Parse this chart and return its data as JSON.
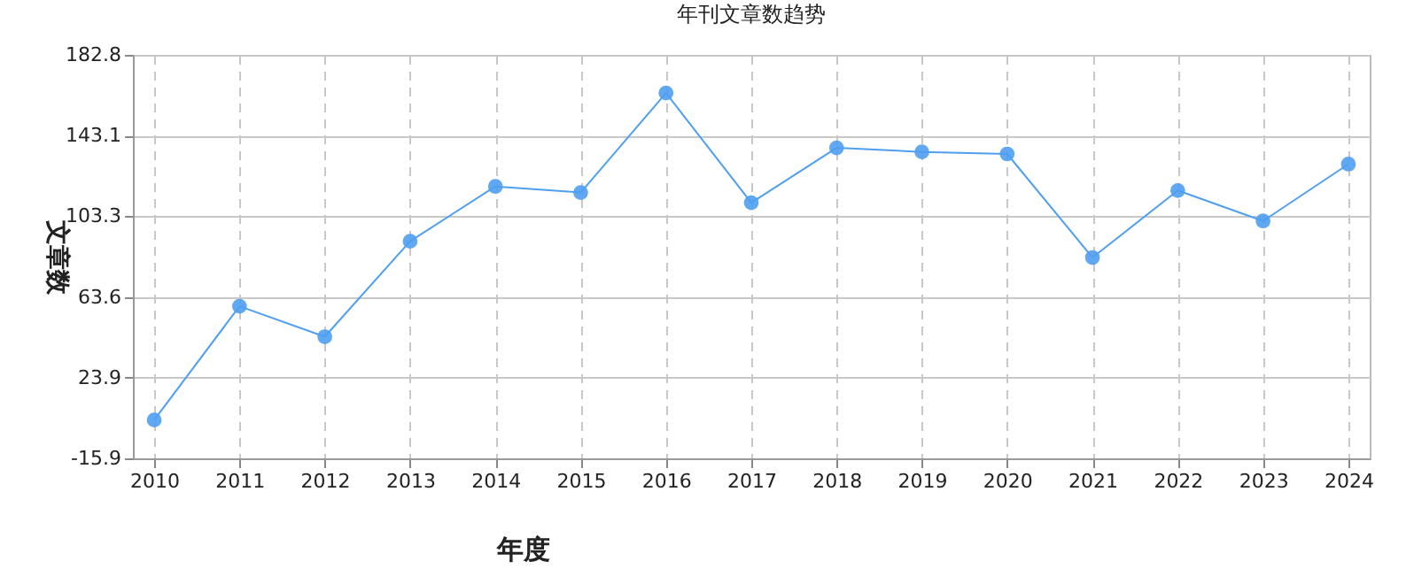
{
  "chart_data": {
    "type": "line",
    "title": "年刊文章数趋势",
    "xlabel": "年度",
    "ylabel": "文章数",
    "categories": [
      "2010",
      "2011",
      "2012",
      "2013",
      "2014",
      "2015",
      "2016",
      "2017",
      "2018",
      "2019",
      "2020",
      "2021",
      "2022",
      "2023",
      "2024"
    ],
    "series": [
      {
        "color": "#4f9ff0",
        "values": [
          3,
          59,
          44,
          91,
          118,
          115,
          164,
          110,
          137,
          135,
          134,
          83,
          116,
          101,
          129
        ]
      }
    ],
    "ylim": [
      -15.9,
      182.8
    ],
    "yticks": [
      -15.9,
      23.9,
      63.6,
      103.3,
      143.1,
      182.8
    ],
    "grid": true,
    "marker": "circle",
    "line_style": "solid"
  }
}
